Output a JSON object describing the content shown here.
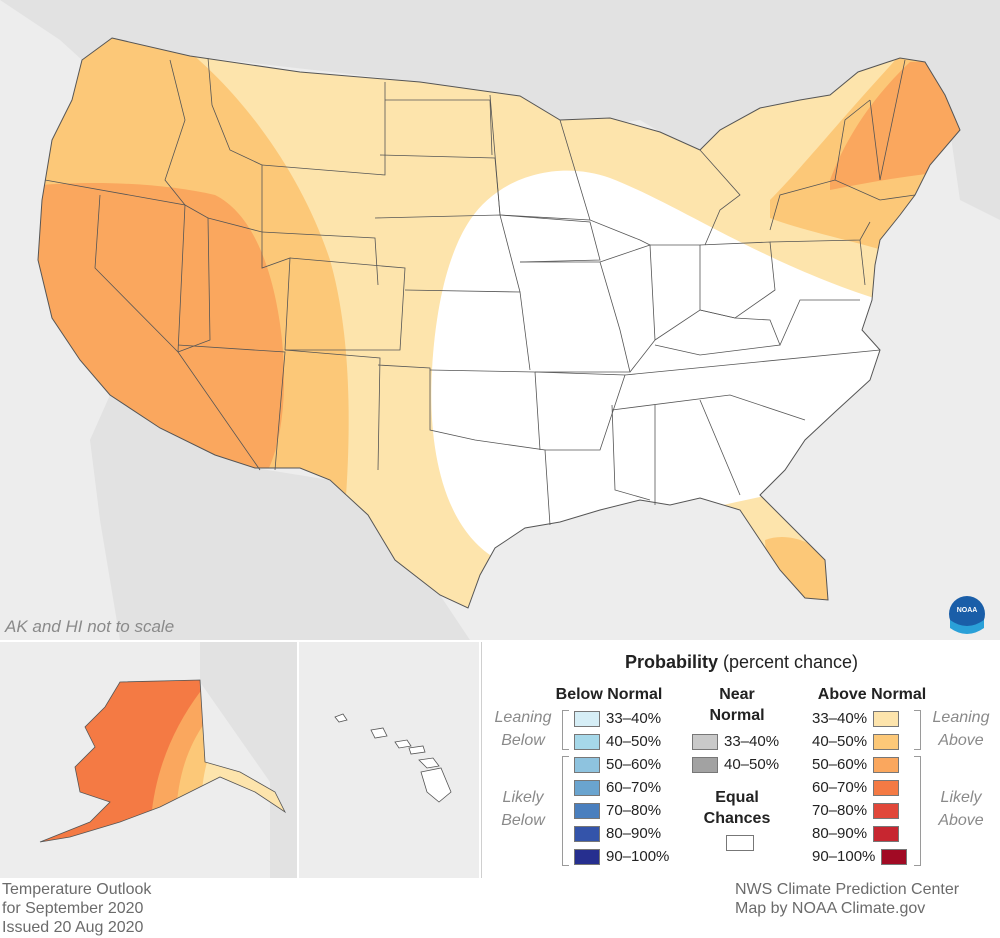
{
  "map": {
    "scale_note": "AK and HI not to scale",
    "logo_text": "NOAA"
  },
  "legend": {
    "title_bold": "Probability",
    "title_rest": " (percent chance)",
    "below_normal": {
      "header": "Below Normal",
      "leaning_label": [
        "Leaning",
        "Below"
      ],
      "likely_label": [
        "Likely",
        "Below"
      ],
      "items": [
        {
          "label": "33–40%",
          "color": "#d6eef6"
        },
        {
          "label": "40–50%",
          "color": "#a6d8e9"
        },
        {
          "label": "50–60%",
          "color": "#8ec3df"
        },
        {
          "label": "60–70%",
          "color": "#6aa4cf"
        },
        {
          "label": "70–80%",
          "color": "#4a7fbe"
        },
        {
          "label": "80–90%",
          "color": "#3454aa"
        },
        {
          "label": "90–100%",
          "color": "#262f8f"
        }
      ]
    },
    "near_normal": {
      "header": [
        "Near",
        "Normal"
      ],
      "items": [
        {
          "label": "33–40%",
          "color": "#c9c9c9"
        },
        {
          "label": "40–50%",
          "color": "#a2a2a2"
        }
      ]
    },
    "equal_chances": {
      "label": [
        "Equal",
        "Chances"
      ],
      "color": "#ffffff"
    },
    "above_normal": {
      "header": "Above Normal",
      "leaning_label": [
        "Leaning",
        "Above"
      ],
      "likely_label": [
        "Likely",
        "Above"
      ],
      "items": [
        {
          "label": "33–40%",
          "color": "#fde4ac"
        },
        {
          "label": "40–50%",
          "color": "#fcc878"
        },
        {
          "label": "50–60%",
          "color": "#faa75e"
        },
        {
          "label": "60–70%",
          "color": "#f47a44"
        },
        {
          "label": "70–80%",
          "color": "#e1473a"
        },
        {
          "label": "80–90%",
          "color": "#c72630"
        },
        {
          "label": "90–100%",
          "color": "#a10a24"
        }
      ]
    }
  },
  "footer": {
    "left": [
      "Temperature Outlook",
      "for September 2020",
      "Issued 20 Aug 2020"
    ],
    "right": [
      "NWS Climate Prediction Center",
      "Map by NOAA Climate.gov"
    ]
  }
}
